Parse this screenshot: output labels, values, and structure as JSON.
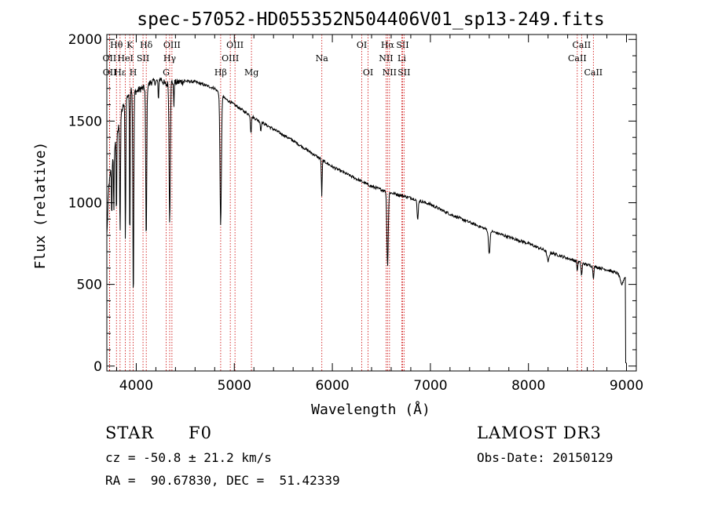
{
  "chart_data": {
    "type": "line",
    "title": "spec-57052-HD055352N504406V01_sp13-249.fits",
    "xlabel": "Wavelength (Å)",
    "ylabel": "Flux (relative)",
    "xlim": [
      3700,
      9100
    ],
    "ylim": [
      -30,
      2030
    ],
    "xticks": [
      4000,
      5000,
      6000,
      7000,
      8000,
      9000
    ],
    "yticks": [
      0,
      500,
      1000,
      1500,
      2000
    ],
    "x_tick_labels": [
      "4000",
      "5000",
      "6000",
      "7000",
      "8000",
      "9000"
    ],
    "y_tick_labels": [
      "0",
      "500",
      "1000",
      "1500",
      "2000"
    ],
    "grid": false,
    "series": [
      {
        "name": "spectrum",
        "continuum": [
          [
            3700,
            800
          ],
          [
            3720,
            1100
          ],
          [
            3760,
            1280
          ],
          [
            3800,
            1400
          ],
          [
            3850,
            1560
          ],
          [
            3900,
            1640
          ],
          [
            3950,
            1700
          ],
          [
            4000,
            1680
          ],
          [
            4050,
            1700
          ],
          [
            4100,
            1700
          ],
          [
            4150,
            1740
          ],
          [
            4200,
            1740
          ],
          [
            4250,
            1760
          ],
          [
            4300,
            1720
          ],
          [
            4350,
            1740
          ],
          [
            4400,
            1735
          ],
          [
            4500,
            1745
          ],
          [
            4600,
            1740
          ],
          [
            4700,
            1720
          ],
          [
            4800,
            1700
          ],
          [
            4900,
            1640
          ],
          [
            5000,
            1600
          ],
          [
            5100,
            1560
          ],
          [
            5200,
            1520
          ],
          [
            5400,
            1450
          ],
          [
            5600,
            1380
          ],
          [
            5800,
            1300
          ],
          [
            6000,
            1220
          ],
          [
            6200,
            1160
          ],
          [
            6400,
            1100
          ],
          [
            6600,
            1060
          ],
          [
            6800,
            1030
          ],
          [
            7000,
            990
          ],
          [
            7200,
            930
          ],
          [
            7400,
            880
          ],
          [
            7600,
            830
          ],
          [
            7800,
            790
          ],
          [
            8000,
            750
          ],
          [
            8200,
            700
          ],
          [
            8400,
            660
          ],
          [
            8600,
            620
          ],
          [
            8800,
            590
          ],
          [
            8950,
            560
          ],
          [
            9000,
            540
          ]
        ],
        "absorption_lines": [
          [
            3750,
            350,
            3
          ],
          [
            3771,
            400,
            3
          ],
          [
            3798,
            500,
            3
          ],
          [
            3835,
            700,
            4
          ],
          [
            3889,
            850,
            4
          ],
          [
            3934,
            1000,
            3
          ],
          [
            3970,
            1300,
            5
          ],
          [
            4102,
            950,
            5
          ],
          [
            4226,
            150,
            3
          ],
          [
            4341,
            850,
            6
          ],
          [
            4383,
            150,
            3
          ],
          [
            4861,
            800,
            7
          ],
          [
            5170,
            100,
            5
          ],
          [
            5270,
            60,
            4
          ],
          [
            5892,
            220,
            4
          ],
          [
            6563,
            450,
            7
          ],
          [
            6870,
            120,
            6
          ],
          [
            7600,
            140,
            8
          ],
          [
            8200,
            60,
            10
          ],
          [
            8498,
            60,
            4
          ],
          [
            8542,
            80,
            5
          ],
          [
            8662,
            70,
            5
          ],
          [
            8950,
            60,
            15
          ]
        ]
      }
    ],
    "line_markers": [
      {
        "label": "Hθ",
        "x": 3798,
        "row": 0
      },
      {
        "label": "OII",
        "x": 3727,
        "row": 1
      },
      {
        "label": "OII",
        "x": 3729,
        "row": 2
      },
      {
        "label": "Hε",
        "x": 3835,
        "row": 2
      },
      {
        "label": "K",
        "x": 3934,
        "row": 0
      },
      {
        "label": "HeI",
        "x": 3889,
        "row": 1
      },
      {
        "label": "H",
        "x": 3969,
        "row": 2
      },
      {
        "label": "Hδ",
        "x": 4102,
        "row": 0
      },
      {
        "label": "SII",
        "x": 4069,
        "row": 1
      },
      {
        "label": "G",
        "x": 4305,
        "row": 2
      },
      {
        "label": "OIII",
        "x": 4364,
        "row": 0
      },
      {
        "label": "Hγ",
        "x": 4341,
        "row": 1
      },
      {
        "label": "Hβ",
        "x": 4861,
        "row": 2
      },
      {
        "label": "OIII",
        "x": 5007,
        "row": 0
      },
      {
        "label": "OIII",
        "x": 4959,
        "row": 1
      },
      {
        "label": "Mg",
        "x": 5175,
        "row": 2
      },
      {
        "label": "Na",
        "x": 5893,
        "row": 1
      },
      {
        "label": "OI",
        "x": 6300,
        "row": 0
      },
      {
        "label": "OI",
        "x": 6364,
        "row": 2
      },
      {
        "label": "Hα",
        "x": 6563,
        "row": 0
      },
      {
        "label": "SII",
        "x": 6716,
        "row": 0
      },
      {
        "label": "NII",
        "x": 6548,
        "row": 1
      },
      {
        "label": "Li",
        "x": 6708,
        "row": 1
      },
      {
        "label": "NII",
        "x": 6583,
        "row": 2
      },
      {
        "label": "SII",
        "x": 6731,
        "row": 2
      },
      {
        "label": "CaII",
        "x": 8542,
        "row": 0
      },
      {
        "label": "CaII",
        "x": 8498,
        "row": 1
      },
      {
        "label": "CaII",
        "x": 8662,
        "row": 2
      }
    ]
  },
  "info": {
    "object_class": "STAR",
    "subclass": "F0",
    "survey": "LAMOST DR3",
    "redshift": "cz = -50.8 ± 21.2 km/s",
    "obs_date": "Obs-Date: 20150129",
    "coordinates": "RA =  90.67830, DEC =  51.42339"
  },
  "colors": {
    "spectrum": "#000000",
    "axis": "#000000",
    "marker_line": "#cc0000",
    "background": "#ffffff"
  }
}
